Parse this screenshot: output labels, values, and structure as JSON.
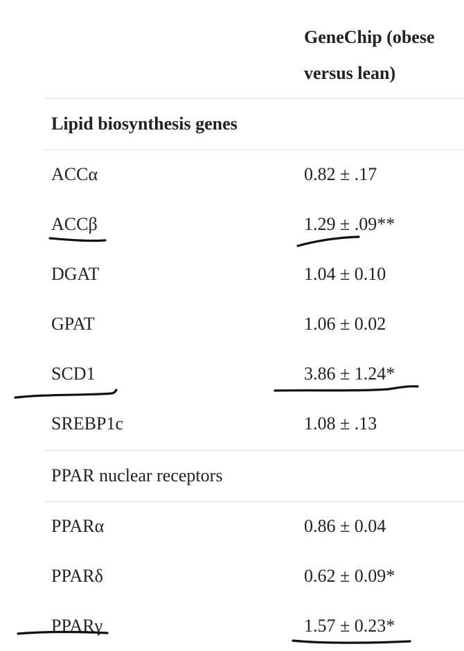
{
  "header": {
    "value_column": "GeneChip (obese versus lean)"
  },
  "sections": [
    {
      "title": "Lipid biosynthesis genes",
      "title_bold": true,
      "rows": [
        {
          "gene": "ACCα",
          "value": "0.82 ± .17"
        },
        {
          "gene": "ACCβ",
          "value": "1.29 ± .09**"
        },
        {
          "gene": "DGAT",
          "value": "1.04 ± 0.10"
        },
        {
          "gene": "GPAT",
          "value": "1.06 ± 0.02"
        },
        {
          "gene": "SCD1",
          "value": "3.86 ± 1.24*"
        },
        {
          "gene": "SREBP1c",
          "value": "1.08 ± .13"
        }
      ]
    },
    {
      "title": "PPAR nuclear receptors",
      "title_bold": false,
      "rows": [
        {
          "gene": "PPARα",
          "value": "0.86 ± 0.04"
        },
        {
          "gene": "PPARδ",
          "value": "0.62 ± 0.09*"
        },
        {
          "gene": "PPARγ",
          "value": "1.57 ± 0.23*"
        }
      ]
    }
  ],
  "annotations": {
    "pen_color": "#111111",
    "underlined_genes": [
      "ACCβ",
      "SCD1",
      "PPARγ"
    ]
  }
}
